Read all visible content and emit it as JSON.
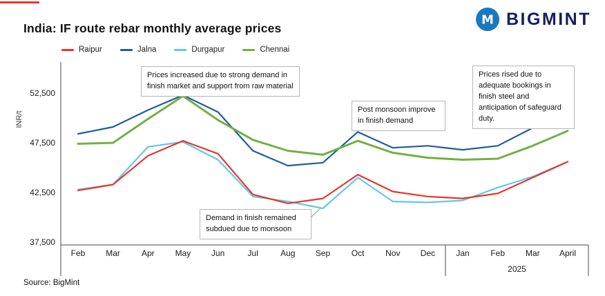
{
  "accent": {
    "top_bar_color": "#e8352e"
  },
  "header": {
    "title": "India: IF route rebar monthly average prices",
    "logo_text": "BIGMINT",
    "logo_icon_color": "#1879c0",
    "logo_text_color": "#152060"
  },
  "legend": [
    {
      "label": "Raipur",
      "color": "#e8352e"
    },
    {
      "label": "Jalna",
      "color": "#1e5c9b"
    },
    {
      "label": "Durgapur",
      "color": "#5fc8e8"
    },
    {
      "label": "Chennai",
      "color": "#72b043"
    }
  ],
  "chart_data": {
    "type": "line",
    "title": "India: IF route rebar monthly average prices",
    "ylabel": "INR/t",
    "xlabel": "",
    "grid": "off",
    "legend_position": "top-left",
    "categories": [
      "Feb",
      "Mar",
      "Apr",
      "May",
      "Jun",
      "Jul",
      "Aug",
      "Sep",
      "Oct",
      "Nov",
      "Dec",
      "Jan",
      "Feb",
      "Mar",
      "April"
    ],
    "year_label": "2025",
    "year_span_categories": [
      "Jan",
      "Feb",
      "Mar",
      "April"
    ],
    "ylim": [
      37500,
      55625
    ],
    "y_ticks": [
      {
        "value": 52500,
        "label": "52,500"
      },
      {
        "value": 47500,
        "label": "47,500"
      },
      {
        "value": 42500,
        "label": "42,500"
      },
      {
        "value": 37500,
        "label": "37,500"
      }
    ],
    "series": [
      {
        "name": "Raipur",
        "color": "#e8352e",
        "values": [
          42700,
          43300,
          46200,
          47700,
          46400,
          42300,
          41400,
          41900,
          44300,
          42600,
          42100,
          41900,
          42400,
          44000,
          45600
        ]
      },
      {
        "name": "Jalna",
        "color": "#1e5c9b",
        "values": [
          48400,
          49100,
          50800,
          52300,
          50600,
          46700,
          45200,
          45500,
          48600,
          47000,
          47200,
          46800,
          47200,
          49000,
          49300
        ]
      },
      {
        "name": "Durgapur",
        "color": "#5fc8e8",
        "values": [
          42800,
          43300,
          47100,
          47600,
          45800,
          42100,
          41600,
          40900,
          44000,
          41600,
          41500,
          41700,
          43000,
          44100,
          45600
        ]
      },
      {
        "name": "Chennai",
        "color": "#72b043",
        "values": [
          47400,
          47500,
          49900,
          52200,
          49800,
          47800,
          46700,
          46300,
          47700,
          46500,
          46000,
          45800,
          45900,
          47200,
          48700
        ]
      }
    ],
    "annotations": [
      "Prices increased due to strong demand in finish market and support from raw material",
      "Post monsoon improve in finish demand",
      "Prices rised due to adequate bookings in finish steel and anticipation of safeguard duty.",
      "Demand in finish remained subdued due to monsoon"
    ]
  },
  "annotations": {
    "a1": "Prices increased due to strong demand in finish market and support from raw material",
    "a2": "Post monsoon improve in finish demand",
    "a3": "Prices rised due to adequate bookings in finish steel and anticipation of safeguard duty.",
    "a4": "Demand in finish remained subdued due to monsoon"
  },
  "footer": {
    "source": "Source: BigMint"
  }
}
